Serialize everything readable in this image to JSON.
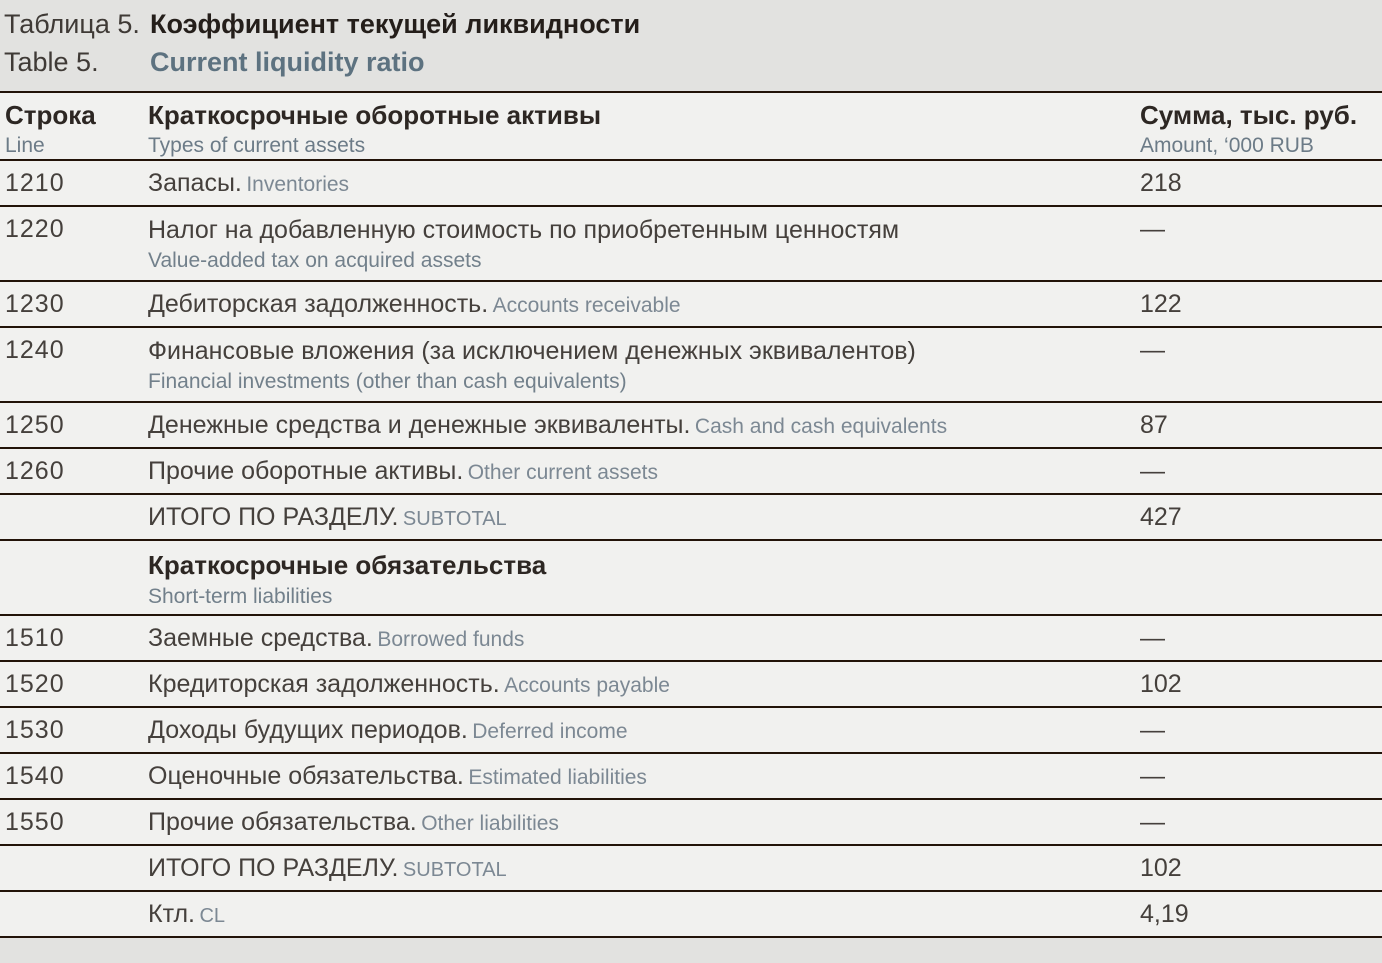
{
  "title": {
    "label_ru": "Таблица 5.",
    "heading_ru": "Коэффициент текущей ликвидности",
    "label_en": "Table 5.",
    "heading_en": "Current liquidity ratio"
  },
  "header": {
    "col_line_ru": "Строка",
    "col_line_en": "Line",
    "col_assets_ru": "Краткосрочные оборотные активы",
    "col_assets_en": "Types of current assets",
    "col_amount_ru": "Сумма, тыс. руб.",
    "col_amount_en": "Amount, ‘000 RUB"
  },
  "rows": [
    {
      "line": "1210",
      "ru": "Запасы.",
      "en": "Inventories",
      "amount": "218"
    },
    {
      "line": "1220",
      "ru": "Налог на добавленную стоимость по приобретенным ценностям",
      "en": "Value-added tax on acquired assets",
      "amount": "—"
    },
    {
      "line": "1230",
      "ru": "Дебиторская задолженность.",
      "en": "Accounts receivable",
      "amount": "122"
    },
    {
      "line": "1240",
      "ru": "Финансовые вложения (за исключением денежных эквивалентов)",
      "en": "Financial investments (other than cash equivalents)",
      "amount": "—"
    },
    {
      "line": "1250",
      "ru": "Денежные средства и денежные эквиваленты.",
      "en": "Cash and cash equivalents",
      "amount": "87"
    },
    {
      "line": "1260",
      "ru": "Прочие оборотные активы.",
      "en": "Other current assets",
      "amount": "—"
    },
    {
      "line": "",
      "ru": "ИТОГО ПО РАЗДЕЛУ.",
      "en": "SUBTOTAL",
      "amount": "427"
    },
    {
      "line": "",
      "ru": "Краткосрочные обязательства",
      "en": "Short-term liabilities",
      "amount": ""
    },
    {
      "line": "1510",
      "ru": "Заемные средства.",
      "en": "Borrowed funds",
      "amount": "—"
    },
    {
      "line": "1520",
      "ru": "Кредиторская задолженность.",
      "en": "Accounts payable",
      "amount": "102"
    },
    {
      "line": "1530",
      "ru": "Доходы будущих периодов.",
      "en": "Deferred income",
      "amount": "—"
    },
    {
      "line": "1540",
      "ru": "Оценочные обязательства.",
      "en": "Estimated liabilities",
      "amount": "—"
    },
    {
      "line": "1550",
      "ru": "Прочие обязательства.",
      "en": "Other liabilities",
      "amount": "—"
    },
    {
      "line": "",
      "ru": "ИТОГО ПО РАЗДЕЛУ.",
      "en": "SUBTOTAL",
      "amount": "102"
    },
    {
      "line": "",
      "ru": "Ктл.",
      "en": "CL",
      "amount": "4,19"
    }
  ],
  "colors": {
    "page_bg": "#e2e2e0",
    "row_bg": "#f1f1ef",
    "rule": "#221308",
    "text_primary": "#45403c",
    "text_bold": "#2d2723",
    "text_secondary": "#7c8893",
    "title_en_accent": "#5d7280"
  }
}
